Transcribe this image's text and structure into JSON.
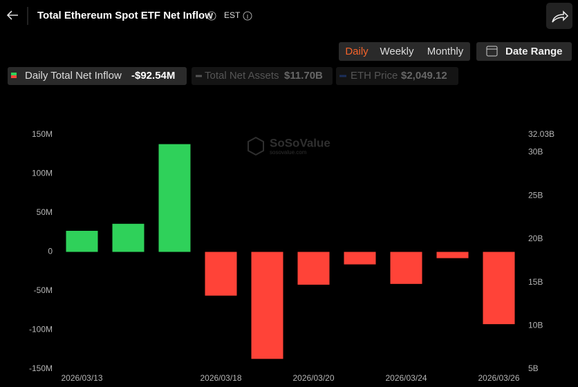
{
  "header": {
    "title": "Total Ethereum Spot ETF Net Inflow",
    "timezone": "EST"
  },
  "tabs": [
    {
      "label": "Daily",
      "active": true
    },
    {
      "label": "Weekly",
      "active": false
    },
    {
      "label": "Monthly",
      "active": false
    }
  ],
  "date_range": "Date Range",
  "legend": [
    {
      "value_label": "-$92.54M"
    },
    {
      "label": "Total Net Assets",
      "value_label": "$11.70B"
    },
    {
      "label": "ETH Price",
      "value_label": "$2,049.12"
    }
  ],
  "watermark": {
    "brand": "SoSoValue",
    "url": "sosovalue.com"
  },
  "chart_data": {
    "type": "bar",
    "categories": [
      "2026/03/13",
      null,
      null,
      "2026/03/18",
      null,
      "2026/03/20",
      null,
      "2026/03/24",
      null,
      "2026/03/26"
    ],
    "series": [
      {
        "name": "Daily Total Net Inflow",
        "positive_color": "#2fd15a",
        "negative_color": "#ff4338",
        "values": [
          27,
          36,
          138,
          -56,
          -137,
          -42,
          -16,
          -41,
          -8,
          -92.54
        ]
      }
    ],
    "ylim": [
      -150,
      150
    ],
    "yticks": [
      {
        "value": -150,
        "label": "-150M"
      },
      {
        "value": -100,
        "label": "-100M"
      },
      {
        "value": -50,
        "label": "-50M"
      },
      0,
      {
        "value": 50,
        "label": "50M"
      },
      {
        "value": 100,
        "label": "100M"
      },
      {
        "value": 150,
        "label": "150M"
      }
    ],
    "y2lim": [
      5,
      32.03
    ],
    "y2ticks": [
      {
        "value": 5,
        "label": "5B"
      },
      {
        "value": 10,
        "label": "10B"
      },
      {
        "value": 15,
        "label": "15B"
      },
      {
        "value": 20,
        "label": "20B"
      },
      {
        "value": 25,
        "label": "25B"
      },
      {
        "value": 30,
        "label": "30B"
      },
      {
        "value": 32.03,
        "label": "32.03B"
      }
    ],
    "grid": false
  }
}
